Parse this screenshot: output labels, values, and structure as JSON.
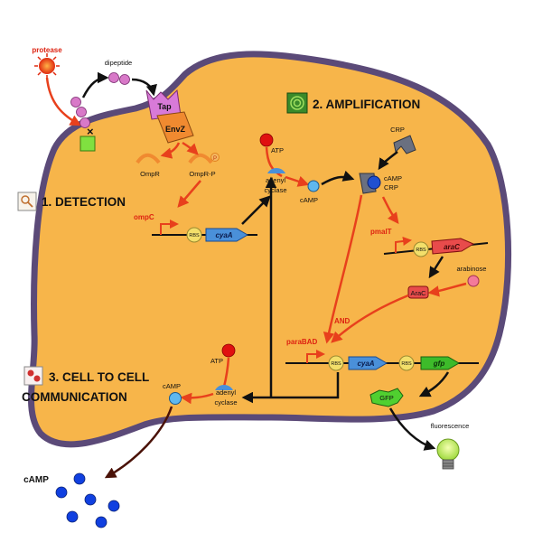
{
  "labels": {
    "protease": "protease",
    "dipeptide": "dipeptide",
    "tap": "Tap",
    "envz": "EnvZ",
    "ompr": "OmpR",
    "omprp": "OmpR-P",
    "p": "P",
    "ompc": "ompC",
    "rbs": "RBS",
    "cyaa": "cyaA",
    "atp": "ATP",
    "adenyl": "adenyl",
    "cyclase": "cyclase",
    "camp": "cAMP",
    "crp": "CRP",
    "pmalt": "pmalT",
    "arac_gene": "araC",
    "arabinose": "arabinose",
    "arac_protein": "AraC",
    "and": "AND",
    "parabad": "paraBAD",
    "gfp_gene": "gfp",
    "gfp_protein": "GFP",
    "fluorescence": "fluorescence",
    "camp_out": "cAMP"
  },
  "sections": {
    "detection": "1. DETECTION",
    "amplification": "2. AMPLIFICATION",
    "comm_line1": "3. CELL TO CELL",
    "comm_line2": "COMMUNICATION"
  },
  "colors": {
    "cell_fill": "#f7b54a",
    "cell_border": "#5b4a78",
    "arrow_red": "#e8401c",
    "arrow_black": "#111111",
    "gene_blue": "#4a90d9",
    "gene_red": "#e84b4b",
    "gene_green": "#3dbb2a",
    "rbs_yellow": "#f3df6a",
    "camp_blue": "#5fb8ee",
    "camp_out_blue": "#1040e0",
    "atp_red": "#e01010",
    "tap_pink": "#d87ad8",
    "envz_orange": "#f08a30",
    "membrane_green": "#80e040"
  },
  "icons": {
    "amplification": "amplification-icon",
    "detection": "magnifier-icon",
    "communication": "cells-icon",
    "fluorescence": "light-bulb-icon"
  }
}
